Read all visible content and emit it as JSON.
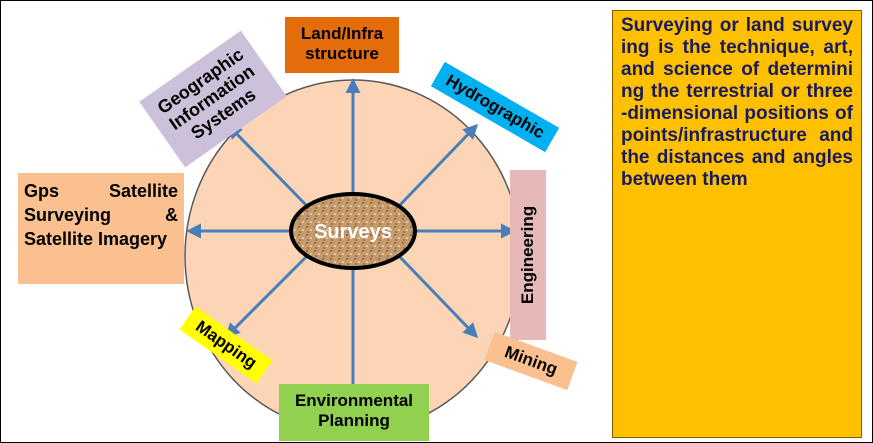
{
  "center": {
    "label": "Surveys"
  },
  "nodes": [
    {
      "label": "Land/Infra structure"
    },
    {
      "label": "Hydrographic"
    },
    {
      "label": "Engineering"
    },
    {
      "label": "Mining"
    },
    {
      "label": "Environmental Planning"
    },
    {
      "label": "Mapping"
    },
    {
      "label": "Gps Satellite Surveying & Satellite Imagery"
    },
    {
      "label": "Geographic Information Systems"
    }
  ],
  "description": "Surveying or land surveying is the technique, art, and science of determining the terrestrial or three-dimensional positions of points/infrastructure and the distances and angles between them"
}
